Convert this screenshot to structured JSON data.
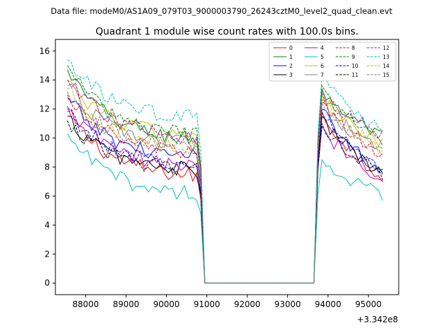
{
  "chart_data": {
    "type": "line",
    "suptitle": "Data file: modeM0/AS1A09_079T03_9000003790_26243cztM0_level2_quad_clean.evt",
    "title": "Quadrant 1 module wise count rates with 100.0s bins.",
    "xlabel": "",
    "ylabel": "",
    "x_offset_label": "+3.342e8",
    "xlim": [
      87250,
      95750
    ],
    "ylim": [
      -0.8,
      16.8
    ],
    "xticks": [
      88000,
      89000,
      90000,
      91000,
      92000,
      93000,
      94000,
      95000
    ],
    "yticks": [
      0,
      2,
      4,
      6,
      8,
      10,
      12,
      14,
      16
    ],
    "x_start": 87550,
    "x_step": 100,
    "legend_position": "top-right",
    "series": [
      {
        "name": "0",
        "color": "#ff0000",
        "dash": "solid",
        "pre_start": 11.8,
        "pre_end": 7.2,
        "post_peak": 11.8,
        "post_end": 7.3
      },
      {
        "name": "1",
        "color": "#008000",
        "dash": "solid",
        "pre_start": 14.7,
        "pre_end": 9.7,
        "post_peak": 13.4,
        "post_end": 10.0
      },
      {
        "name": "2",
        "color": "#0000ff",
        "dash": "solid",
        "pre_start": 12.8,
        "pre_end": 8.5,
        "post_peak": 12.0,
        "post_end": 7.6
      },
      {
        "name": "3",
        "color": "#000000",
        "dash": "solid",
        "pre_start": 11.5,
        "pre_end": 7.6,
        "post_peak": 11.5,
        "post_end": 7.5
      },
      {
        "name": "4",
        "color": "#bf00bf",
        "dash": "solid",
        "pre_start": 12.2,
        "pre_end": 7.8,
        "post_peak": 10.8,
        "post_end": 7.2
      },
      {
        "name": "5",
        "color": "#00bfbf",
        "dash": "solid",
        "pre_start": 10.3,
        "pre_end": 6.0,
        "post_peak": 8.5,
        "post_end": 6.0
      },
      {
        "name": "6",
        "color": "#bfbf00",
        "dash": "solid",
        "pre_start": 14.0,
        "pre_end": 10.0,
        "post_peak": 13.0,
        "post_end": 9.5
      },
      {
        "name": "7",
        "color": "#808080",
        "dash": "solid",
        "pre_start": 13.6,
        "pre_end": 9.4,
        "post_peak": 12.6,
        "post_end": 9.0
      },
      {
        "name": "8",
        "color": "#ff0000",
        "dash": "dashed",
        "pre_start": 13.0,
        "pre_end": 8.8,
        "post_peak": 12.5,
        "post_end": 8.8
      },
      {
        "name": "9",
        "color": "#008000",
        "dash": "dashed",
        "pre_start": 15.0,
        "pre_end": 10.0,
        "post_peak": 13.6,
        "post_end": 9.6
      },
      {
        "name": "10",
        "color": "#0000ff",
        "dash": "dashed",
        "pre_start": 12.0,
        "pre_end": 8.0,
        "post_peak": 11.8,
        "post_end": 7.8
      },
      {
        "name": "11",
        "color": "#000000",
        "dash": "dashed",
        "pre_start": 11.2,
        "pre_end": 7.7,
        "post_peak": 11.0,
        "post_end": 7.6
      },
      {
        "name": "12",
        "color": "#bf00bf",
        "dash": "dashed",
        "pre_start": 14.0,
        "pre_end": 9.9,
        "post_peak": 13.2,
        "post_end": 10.2
      },
      {
        "name": "13",
        "color": "#00bfbf",
        "dash": "dashed",
        "pre_start": 15.4,
        "pre_end": 11.2,
        "post_peak": 14.2,
        "post_end": 10.4
      },
      {
        "name": "14",
        "color": "#bfbf00",
        "dash": "dashed",
        "pre_start": 13.4,
        "pre_end": 9.0,
        "post_peak": 12.7,
        "post_end": 9.2
      },
      {
        "name": "15",
        "color": "#808080",
        "dash": "dashed",
        "pre_start": 13.2,
        "pre_end": 9.1,
        "post_peak": 12.4,
        "post_end": 9.0
      }
    ],
    "pre_last_x": 90850,
    "gap_start_x": 90950,
    "gap_end_x": 93650,
    "post_first_x": 93750,
    "post_peak_x": 93850,
    "last_x": 95350
  }
}
